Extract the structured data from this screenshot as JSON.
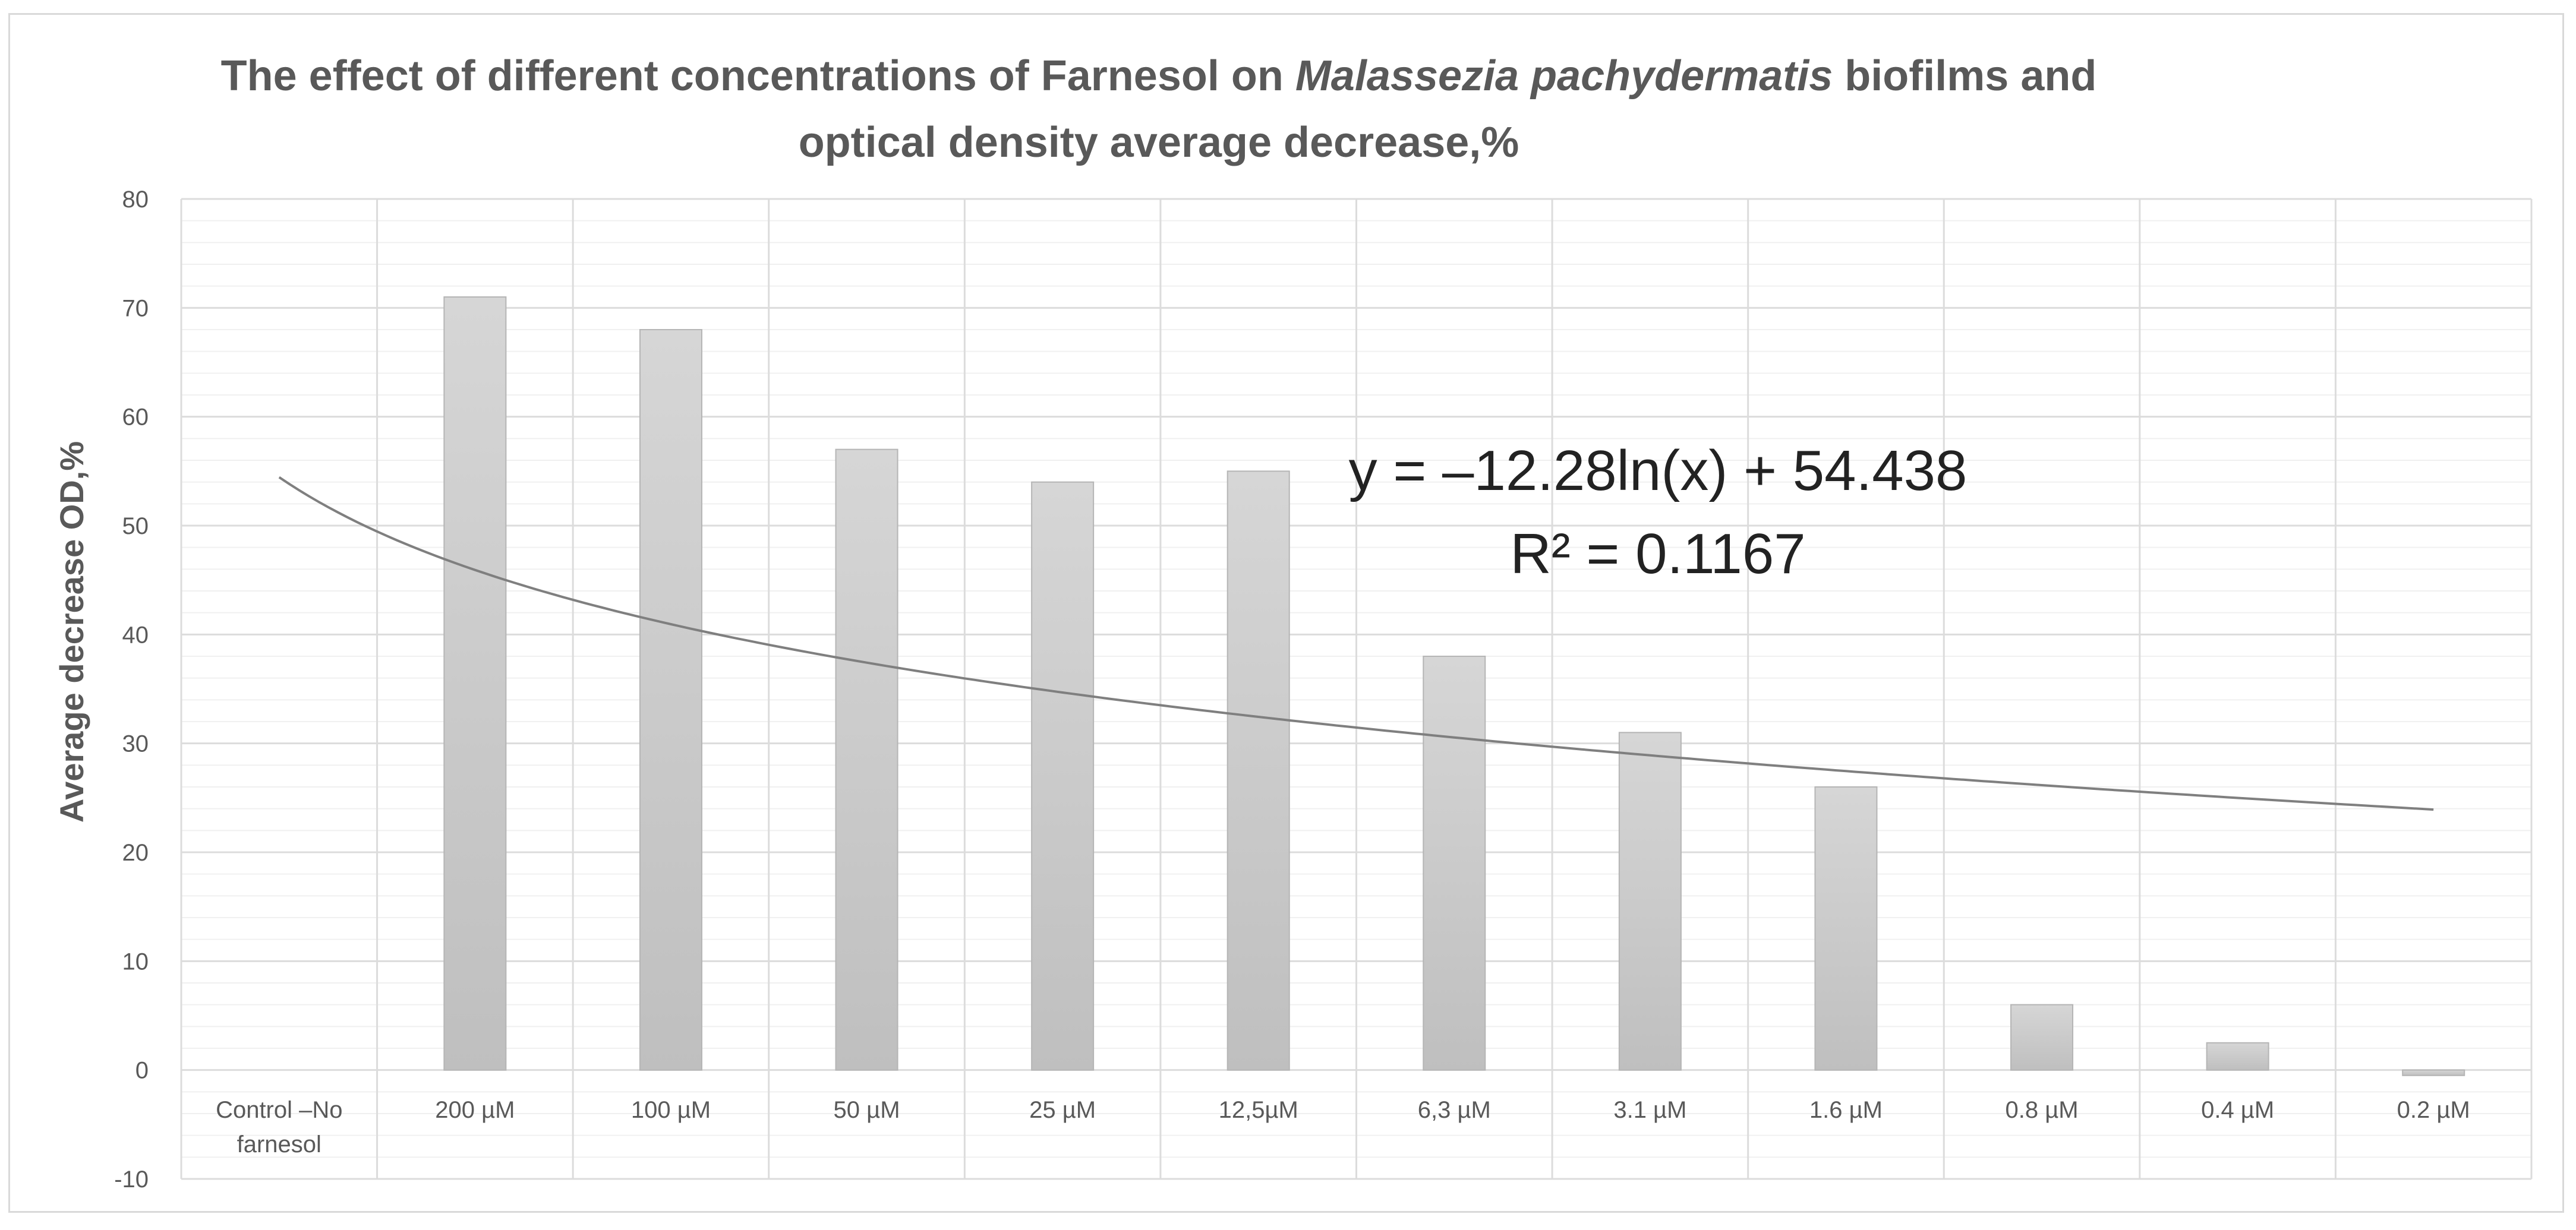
{
  "chart_data": {
    "type": "bar",
    "title_parts": [
      "The effect of different concentrations of Farnesol on ",
      "Malassezia pachydermatis",
      " biofilms and",
      "optical density average decrease,%"
    ],
    "categories": [
      "Control –No farnesol",
      "200 µM",
      "100 µM",
      "50 µM",
      "25 µM",
      "12,5µM",
      "6,3 µM",
      "3.1 µM",
      "1.6 µM",
      "0.8 µM",
      "0.4 µM",
      "0.2 µM"
    ],
    "category_lines": [
      [
        "Control –No",
        "farnesol"
      ],
      [
        "200 µM"
      ],
      [
        "100 µM"
      ],
      [
        "50 µM"
      ],
      [
        "25 µM"
      ],
      [
        "12,5µM"
      ],
      [
        "6,3 µM"
      ],
      [
        "3.1 µM"
      ],
      [
        "1.6 µM"
      ],
      [
        "0.8 µM"
      ],
      [
        "0.4 µM"
      ],
      [
        "0.2 µM"
      ]
    ],
    "values": [
      0,
      71,
      68,
      57,
      54,
      55,
      38,
      31,
      26,
      6,
      2.5,
      -0.5
    ],
    "ylabel": "Average decrease OD,%",
    "xlabel": "",
    "ylim": [
      -10,
      80
    ],
    "yticks": [
      "-10",
      "0",
      "10",
      "20",
      "30",
      "40",
      "50",
      "60",
      "70",
      "80"
    ],
    "grid": true,
    "legend": "none",
    "trendline": {
      "type": "logarithmic",
      "a": -12.28,
      "b": 54.438,
      "equation": "y = –12.28ln(x) + 54.438",
      "r_squared": "R² = 0.1167"
    },
    "colors": {
      "bar": "#c8c8c8",
      "bar_edge": "#b5b5b5",
      "trend": "#7f7f7f",
      "grid": "#e6e6e6",
      "text": "#595959"
    }
  }
}
